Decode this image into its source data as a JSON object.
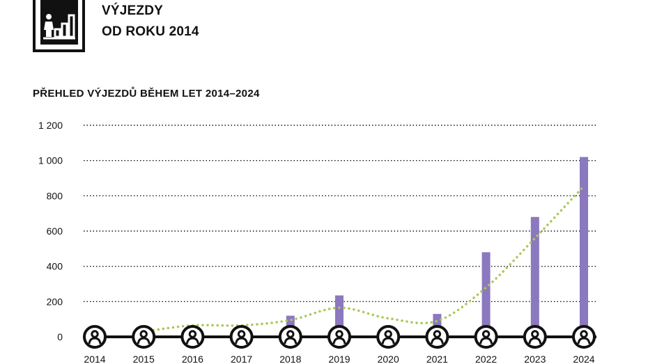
{
  "header": {
    "icon": "statistics-person-bar-chart-icon",
    "title_line1": "VÝJEZDY",
    "title_line2": "OD ROKU 2014"
  },
  "chart_data": {
    "type": "bar",
    "title": "PŘEHLED VÝJEZDŮ BĚHEM LET 2014–2024",
    "categories": [
      "2014",
      "2015",
      "2016",
      "2017",
      "2018",
      "2019",
      "2020",
      "2021",
      "2022",
      "2023",
      "2024"
    ],
    "series": [
      {
        "type": "bar",
        "values": [
          20,
          45,
          60,
          55,
          120,
          235,
          0,
          130,
          480,
          680,
          1020
        ],
        "color": "#8B78BE"
      },
      {
        "type": "line",
        "style": "dotted",
        "smooth": true,
        "values": [
          null,
          30,
          65,
          65,
          95,
          165,
          105,
          90,
          280,
          560,
          855
        ],
        "color": "#A8C955"
      }
    ],
    "yticks": [
      "0",
      "200",
      "400",
      "600",
      "800",
      "1 000",
      "1 200"
    ],
    "ylim": [
      0,
      1200
    ],
    "grid": "horizontal-dotted",
    "category_marker": "person-circle-icon",
    "colors": {
      "bar": "#8B78BE",
      "trend": "#A8C955",
      "axis": "#111111"
    }
  }
}
